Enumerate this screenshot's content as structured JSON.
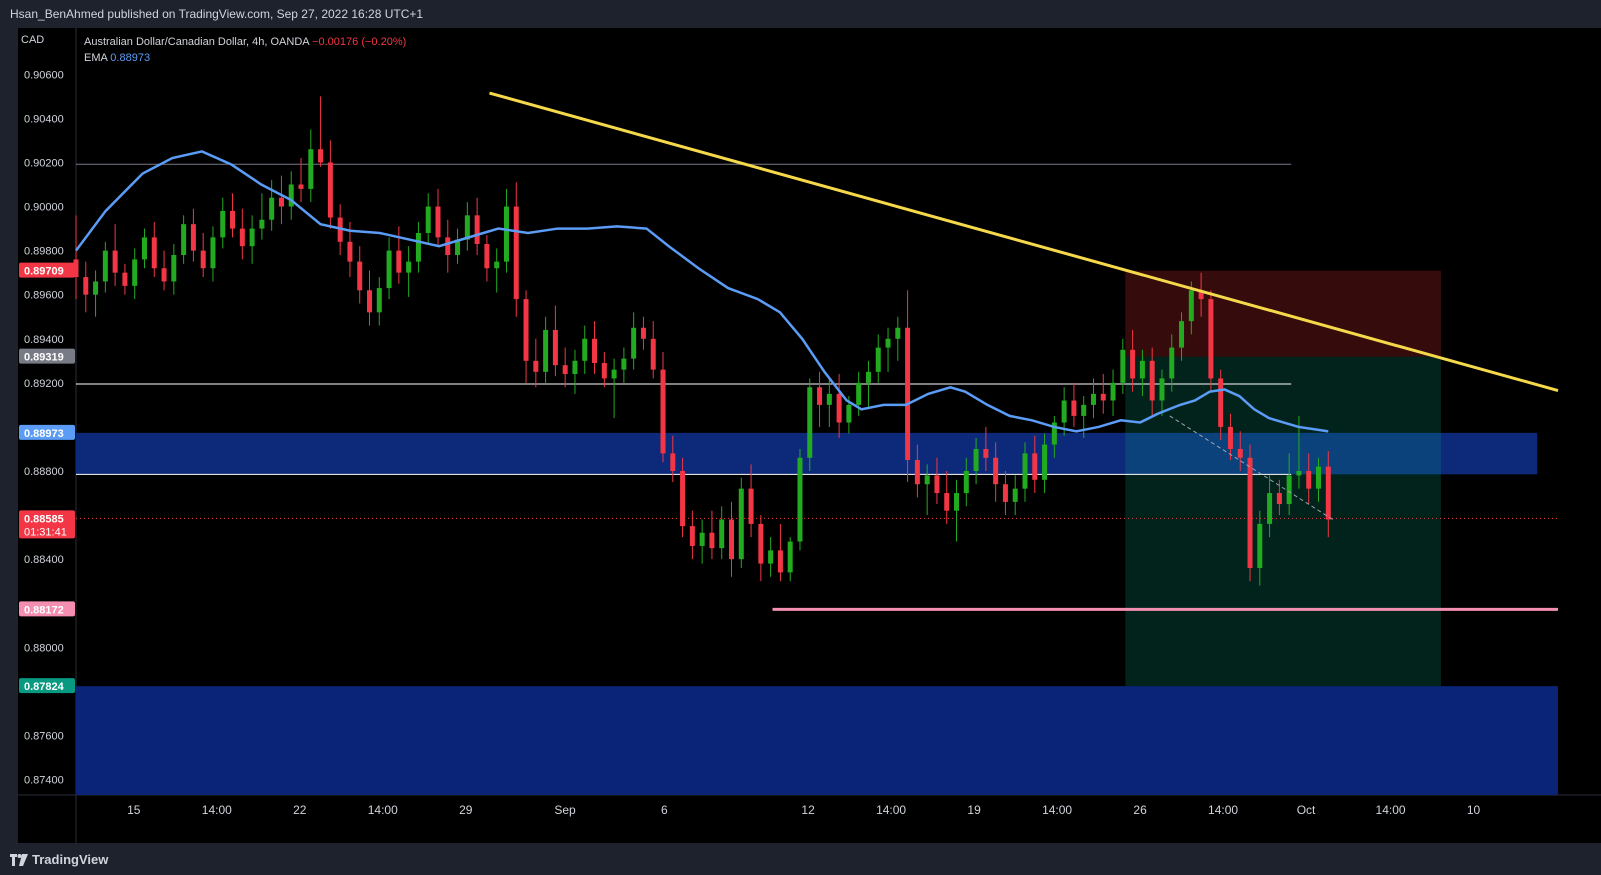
{
  "publisher": "Hsan_BenAhmed published on TradingView.com, Sep 27, 2022 16:28 UTC+1",
  "brand": "TradingView",
  "chart_data": {
    "type": "candlestick",
    "currency_label": "CAD",
    "symbol": "Australian Dollar/Canadian Dollar, 4h, OANDA",
    "change": "−0.00176 (−0.20%)",
    "ema_label": "EMA",
    "ema_value": "0.88973",
    "y_ticks": [
      "0.90600",
      "0.90400",
      "0.90200",
      "0.90000",
      "0.89800",
      "0.89600",
      "0.89400",
      "0.89200",
      "0.88800",
      "0.88400",
      "0.88000",
      "0.87600",
      "0.87400"
    ],
    "y_tick_values": [
      0.906,
      0.904,
      0.902,
      0.9,
      0.898,
      0.896,
      0.894,
      0.892,
      0.888,
      0.884,
      0.88,
      0.876,
      0.874
    ],
    "x_ticks": [
      "15",
      "14:00",
      "22",
      "14:00",
      "29",
      "Sep",
      "6",
      "12",
      "14:00",
      "19",
      "14:00",
      "26",
      "14:00",
      "Oct",
      "14:00",
      "10"
    ],
    "x_tick_positions": [
      0.039,
      0.095,
      0.151,
      0.207,
      0.263,
      0.33,
      0.397,
      0.494,
      0.55,
      0.606,
      0.662,
      0.718,
      0.774,
      0.83,
      0.887,
      0.943
    ],
    "ylim": [
      0.8733,
      0.9081
    ],
    "price_labels": [
      {
        "value": 0.89709,
        "text": "0.89709",
        "color": "#f23645"
      },
      {
        "value": 0.89319,
        "text": "0.89319",
        "color": "#787b86"
      },
      {
        "value": 0.88973,
        "text": "0.88973",
        "color": "#5b9cf6"
      },
      {
        "value": 0.88585,
        "text": "0.88585",
        "sub": "01:31:41",
        "color": "#f23645"
      },
      {
        "value": 0.88172,
        "text": "0.88172",
        "color": "#f48fb1"
      },
      {
        "value": 0.87824,
        "text": "0.87824",
        "color": "#089981"
      }
    ],
    "horizontal_levels": [
      0.89195,
      0.88785
    ],
    "faint_level": 0.90192,
    "support_level": 0.88172,
    "current_price": 0.88585,
    "zones": [
      {
        "name": "upper-demand-zone",
        "from": 0.88785,
        "to": 0.88973,
        "color": "#0d2a7a"
      },
      {
        "name": "lower-demand-zone",
        "from": 0.8733,
        "to": 0.87824,
        "color": "#0a2478"
      }
    ],
    "trendline": {
      "start": {
        "t": 0.279,
        "y": 0.90515
      },
      "end": {
        "t": 1.0,
        "y": 0.89165
      },
      "color": "#f5d94a"
    },
    "position_tool": {
      "t_start": 0.708,
      "t_end": 0.921,
      "entry": 0.89319,
      "stop": 0.89709,
      "target": 0.87824
    },
    "candles": [
      [
        0.8976,
        0.8996,
        0.8958,
        0.8968
      ],
      [
        0.8968,
        0.8975,
        0.8952,
        0.896
      ],
      [
        0.896,
        0.8971,
        0.895,
        0.8966
      ],
      [
        0.8966,
        0.8984,
        0.8961,
        0.898
      ],
      [
        0.898,
        0.8992,
        0.8964,
        0.897
      ],
      [
        0.897,
        0.8974,
        0.896,
        0.8964
      ],
      [
        0.8964,
        0.8981,
        0.8958,
        0.8976
      ],
      [
        0.8976,
        0.899,
        0.8972,
        0.8986
      ],
      [
        0.8986,
        0.8993,
        0.8968,
        0.8972
      ],
      [
        0.8972,
        0.898,
        0.8962,
        0.8966
      ],
      [
        0.8966,
        0.8983,
        0.896,
        0.8978
      ],
      [
        0.8978,
        0.8996,
        0.8974,
        0.8992
      ],
      [
        0.8992,
        0.8999,
        0.8975,
        0.898
      ],
      [
        0.898,
        0.8988,
        0.8968,
        0.8972
      ],
      [
        0.8972,
        0.8991,
        0.8966,
        0.8986
      ],
      [
        0.8986,
        0.9004,
        0.8981,
        0.8998
      ],
      [
        0.8998,
        0.9006,
        0.8986,
        0.899
      ],
      [
        0.899,
        0.8999,
        0.8976,
        0.8982
      ],
      [
        0.8982,
        0.8996,
        0.8974,
        0.899
      ],
      [
        0.899,
        0.9006,
        0.8985,
        0.8994
      ],
      [
        0.8994,
        0.9012,
        0.8989,
        0.9004
      ],
      [
        0.9004,
        0.9014,
        0.8992,
        0.9
      ],
      [
        0.9,
        0.9016,
        0.8994,
        0.901
      ],
      [
        0.901,
        0.9022,
        0.9002,
        0.9008
      ],
      [
        0.9008,
        0.9035,
        0.9002,
        0.9026
      ],
      [
        0.9026,
        0.905,
        0.9018,
        0.902
      ],
      [
        0.902,
        0.903,
        0.899,
        0.8995
      ],
      [
        0.8995,
        0.9001,
        0.8978,
        0.8984
      ],
      [
        0.8984,
        0.8993,
        0.8968,
        0.8975
      ],
      [
        0.8975,
        0.8982,
        0.8956,
        0.8962
      ],
      [
        0.8962,
        0.8971,
        0.8946,
        0.8952
      ],
      [
        0.8952,
        0.8968,
        0.8946,
        0.8963
      ],
      [
        0.8963,
        0.8986,
        0.8958,
        0.898
      ],
      [
        0.898,
        0.8991,
        0.8965,
        0.897
      ],
      [
        0.897,
        0.8982,
        0.8959,
        0.8975
      ],
      [
        0.8975,
        0.8993,
        0.897,
        0.8988
      ],
      [
        0.8988,
        0.9006,
        0.8983,
        0.9
      ],
      [
        0.9,
        0.9008,
        0.8982,
        0.8986
      ],
      [
        0.8986,
        0.8994,
        0.897,
        0.8978
      ],
      [
        0.8978,
        0.899,
        0.8974,
        0.8985
      ],
      [
        0.8985,
        0.9002,
        0.898,
        0.8996
      ],
      [
        0.8996,
        0.9004,
        0.8978,
        0.8983
      ],
      [
        0.8983,
        0.8987,
        0.8966,
        0.8972
      ],
      [
        0.8972,
        0.8981,
        0.8961,
        0.8975
      ],
      [
        0.8975,
        0.9008,
        0.897,
        0.9
      ],
      [
        0.9,
        0.9011,
        0.895,
        0.8958
      ],
      [
        0.8958,
        0.8962,
        0.892,
        0.893
      ],
      [
        0.893,
        0.894,
        0.8918,
        0.8925
      ],
      [
        0.8925,
        0.895,
        0.892,
        0.8944
      ],
      [
        0.8944,
        0.8955,
        0.8923,
        0.8928
      ],
      [
        0.8928,
        0.8936,
        0.8918,
        0.8924
      ],
      [
        0.8924,
        0.8935,
        0.8915,
        0.893
      ],
      [
        0.893,
        0.8946,
        0.8924,
        0.894
      ],
      [
        0.894,
        0.8948,
        0.8924,
        0.8929
      ],
      [
        0.8929,
        0.8934,
        0.8918,
        0.8922
      ],
      [
        0.8922,
        0.8931,
        0.8904,
        0.8926
      ],
      [
        0.8926,
        0.8936,
        0.892,
        0.8931
      ],
      [
        0.8931,
        0.8952,
        0.8926,
        0.8945
      ],
      [
        0.8945,
        0.895,
        0.8935,
        0.894
      ],
      [
        0.894,
        0.8948,
        0.8922,
        0.8926
      ],
      [
        0.8926,
        0.8934,
        0.8884,
        0.8888
      ],
      [
        0.8888,
        0.8896,
        0.8875,
        0.888
      ],
      [
        0.888,
        0.8886,
        0.885,
        0.8855
      ],
      [
        0.8855,
        0.8862,
        0.884,
        0.8846
      ],
      [
        0.8846,
        0.8858,
        0.8838,
        0.8852
      ],
      [
        0.8852,
        0.8862,
        0.884,
        0.8845
      ],
      [
        0.8845,
        0.8864,
        0.884,
        0.8858
      ],
      [
        0.8858,
        0.8866,
        0.8832,
        0.884
      ],
      [
        0.884,
        0.8877,
        0.8836,
        0.8872
      ],
      [
        0.8872,
        0.8883,
        0.885,
        0.8856
      ],
      [
        0.8856,
        0.886,
        0.883,
        0.8838
      ],
      [
        0.8838,
        0.885,
        0.8832,
        0.8844
      ],
      [
        0.8844,
        0.8856,
        0.883,
        0.8834
      ],
      [
        0.8834,
        0.885,
        0.883,
        0.8848
      ],
      [
        0.8848,
        0.889,
        0.8844,
        0.8886
      ],
      [
        0.8886,
        0.8922,
        0.888,
        0.8918
      ],
      [
        0.8918,
        0.8925,
        0.89,
        0.891
      ],
      [
        0.891,
        0.8922,
        0.89,
        0.8915
      ],
      [
        0.8915,
        0.8924,
        0.8895,
        0.8902
      ],
      [
        0.8902,
        0.8914,
        0.8897,
        0.891
      ],
      [
        0.891,
        0.8925,
        0.8905,
        0.892
      ],
      [
        0.892,
        0.893,
        0.8908,
        0.8925
      ],
      [
        0.8925,
        0.8942,
        0.892,
        0.8936
      ],
      [
        0.8936,
        0.8945,
        0.8925,
        0.894
      ],
      [
        0.894,
        0.895,
        0.893,
        0.8945
      ],
      [
        0.8945,
        0.8962,
        0.8875,
        0.8885
      ],
      [
        0.8885,
        0.8892,
        0.8868,
        0.8874
      ],
      [
        0.8874,
        0.8883,
        0.886,
        0.8878
      ],
      [
        0.8878,
        0.8886,
        0.8865,
        0.887
      ],
      [
        0.887,
        0.888,
        0.8856,
        0.8862
      ],
      [
        0.8862,
        0.8876,
        0.8848,
        0.887
      ],
      [
        0.887,
        0.8886,
        0.8864,
        0.888
      ],
      [
        0.888,
        0.8895,
        0.8874,
        0.889
      ],
      [
        0.889,
        0.89,
        0.888,
        0.8886
      ],
      [
        0.8886,
        0.8893,
        0.8866,
        0.8874
      ],
      [
        0.8874,
        0.888,
        0.886,
        0.8866
      ],
      [
        0.8866,
        0.8878,
        0.886,
        0.8872
      ],
      [
        0.8872,
        0.8893,
        0.8866,
        0.8888
      ],
      [
        0.8888,
        0.8896,
        0.887,
        0.8876
      ],
      [
        0.8876,
        0.8897,
        0.887,
        0.8892
      ],
      [
        0.8892,
        0.8905,
        0.8886,
        0.8902
      ],
      [
        0.8902,
        0.8918,
        0.8896,
        0.8912
      ],
      [
        0.8912,
        0.892,
        0.89,
        0.8905
      ],
      [
        0.8905,
        0.8914,
        0.8895,
        0.891
      ],
      [
        0.891,
        0.8922,
        0.8904,
        0.8915
      ],
      [
        0.8915,
        0.8924,
        0.8906,
        0.8912
      ],
      [
        0.8912,
        0.8926,
        0.8905,
        0.892
      ],
      [
        0.892,
        0.894,
        0.8915,
        0.8935
      ],
      [
        0.8935,
        0.8944,
        0.8916,
        0.8922
      ],
      [
        0.8922,
        0.8935,
        0.8914,
        0.893
      ],
      [
        0.893,
        0.8936,
        0.8905,
        0.8912
      ],
      [
        0.8912,
        0.8926,
        0.8905,
        0.8922
      ],
      [
        0.8922,
        0.8942,
        0.8916,
        0.8936
      ],
      [
        0.8936,
        0.8952,
        0.893,
        0.8948
      ],
      [
        0.8948,
        0.8966,
        0.8942,
        0.8962
      ],
      [
        0.8962,
        0.897,
        0.895,
        0.8958
      ],
      [
        0.8958,
        0.8962,
        0.8916,
        0.8922
      ],
      [
        0.8922,
        0.8926,
        0.8894,
        0.89
      ],
      [
        0.89,
        0.8906,
        0.8885,
        0.889
      ],
      [
        0.889,
        0.8898,
        0.888,
        0.8886
      ],
      [
        0.8886,
        0.8892,
        0.883,
        0.8836
      ],
      [
        0.8836,
        0.8862,
        0.8828,
        0.8856
      ],
      [
        0.8856,
        0.8878,
        0.885,
        0.887
      ],
      [
        0.887,
        0.8876,
        0.886,
        0.8865
      ],
      [
        0.8865,
        0.8888,
        0.886,
        0.8878
      ],
      [
        0.8878,
        0.8905,
        0.8872,
        0.888
      ],
      [
        0.888,
        0.8888,
        0.8865,
        0.8872
      ],
      [
        0.8872,
        0.8886,
        0.8866,
        0.8882
      ],
      [
        0.8882,
        0.8889,
        0.885,
        0.8858
      ]
    ],
    "ema": [
      [
        0.0,
        0.898
      ],
      [
        0.02,
        0.8998
      ],
      [
        0.045,
        0.9015
      ],
      [
        0.065,
        0.9022
      ],
      [
        0.085,
        0.9025
      ],
      [
        0.105,
        0.9019
      ],
      [
        0.125,
        0.901
      ],
      [
        0.145,
        0.9003
      ],
      [
        0.165,
        0.8992
      ],
      [
        0.185,
        0.8989
      ],
      [
        0.205,
        0.8988
      ],
      [
        0.225,
        0.8985
      ],
      [
        0.245,
        0.8982
      ],
      [
        0.265,
        0.8986
      ],
      [
        0.285,
        0.899
      ],
      [
        0.305,
        0.8988
      ],
      [
        0.325,
        0.899
      ],
      [
        0.345,
        0.899
      ],
      [
        0.365,
        0.8991
      ],
      [
        0.385,
        0.899
      ],
      [
        0.4,
        0.8982
      ],
      [
        0.42,
        0.8972
      ],
      [
        0.44,
        0.8963
      ],
      [
        0.46,
        0.8958
      ],
      [
        0.475,
        0.8952
      ],
      [
        0.49,
        0.894
      ],
      [
        0.505,
        0.8925
      ],
      [
        0.52,
        0.8912
      ],
      [
        0.53,
        0.8908
      ],
      [
        0.545,
        0.891
      ],
      [
        0.56,
        0.891
      ],
      [
        0.575,
        0.8915
      ],
      [
        0.59,
        0.8918
      ],
      [
        0.6,
        0.8916
      ],
      [
        0.615,
        0.891
      ],
      [
        0.63,
        0.8905
      ],
      [
        0.645,
        0.8903
      ],
      [
        0.66,
        0.89
      ],
      [
        0.675,
        0.8898
      ],
      [
        0.69,
        0.89
      ],
      [
        0.705,
        0.8903
      ],
      [
        0.718,
        0.8902
      ],
      [
        0.73,
        0.8906
      ],
      [
        0.745,
        0.891
      ],
      [
        0.755,
        0.8912
      ],
      [
        0.765,
        0.8916
      ],
      [
        0.775,
        0.8917
      ],
      [
        0.785,
        0.8914
      ],
      [
        0.795,
        0.8908
      ],
      [
        0.805,
        0.8904
      ],
      [
        0.815,
        0.8902
      ],
      [
        0.825,
        0.89
      ],
      [
        0.835,
        0.8899
      ],
      [
        0.845,
        0.8898
      ]
    ]
  }
}
